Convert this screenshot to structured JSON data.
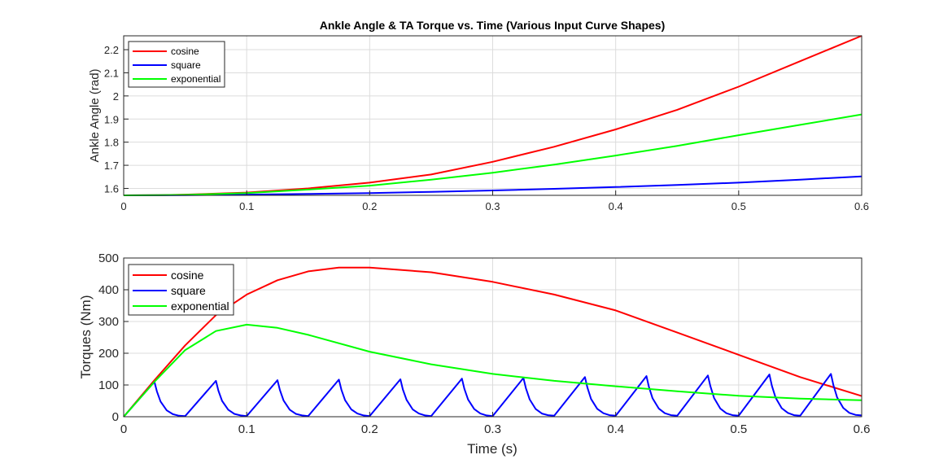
{
  "chart_data": [
    {
      "type": "line",
      "title": "Ankle Angle & TA Torque vs. Time (Various Input Curve Shapes)",
      "xlabel": "",
      "ylabel": "Ankle Angle (rad)",
      "xlim": [
        0,
        0.6
      ],
      "ylim": [
        1.57,
        2.26
      ],
      "xticks": [
        0,
        0.1,
        0.2,
        0.3,
        0.4,
        0.5,
        0.6
      ],
      "xtick_labels": [
        "0",
        "0.1",
        "0.2",
        "0.3",
        "0.4",
        "0.5",
        "0.6"
      ],
      "yticks": [
        1.6,
        1.7,
        1.8,
        1.9,
        2.0,
        2.1,
        2.2
      ],
      "ytick_labels": [
        "1.6",
        "1.7",
        "1.8",
        "1.9",
        "2",
        "2.1",
        "2.2"
      ],
      "grid": true,
      "legend": "top-left",
      "series": [
        {
          "name": "cosine",
          "color": "#ff0000",
          "x": [
            0,
            0.03,
            0.05,
            0.1,
            0.15,
            0.2,
            0.25,
            0.3,
            0.35,
            0.4,
            0.45,
            0.5,
            0.55,
            0.6
          ],
          "y": [
            1.57,
            1.571,
            1.573,
            1.582,
            1.6,
            1.625,
            1.66,
            1.715,
            1.78,
            1.855,
            1.94,
            2.04,
            2.15,
            2.26
          ]
        },
        {
          "name": "square",
          "color": "#0000ff",
          "x": [
            0,
            0.05,
            0.1,
            0.15,
            0.2,
            0.25,
            0.3,
            0.35,
            0.4,
            0.45,
            0.5,
            0.55,
            0.6
          ],
          "y": [
            1.57,
            1.571,
            1.573,
            1.576,
            1.58,
            1.585,
            1.591,
            1.598,
            1.606,
            1.615,
            1.625,
            1.638,
            1.652
          ]
        },
        {
          "name": "exponential",
          "color": "#00ff00",
          "x": [
            0,
            0.03,
            0.05,
            0.1,
            0.15,
            0.2,
            0.25,
            0.3,
            0.35,
            0.4,
            0.45,
            0.5,
            0.55,
            0.6
          ],
          "y": [
            1.57,
            1.571,
            1.572,
            1.58,
            1.595,
            1.612,
            1.638,
            1.668,
            1.703,
            1.742,
            1.784,
            1.83,
            1.875,
            1.92
          ]
        }
      ]
    },
    {
      "type": "line",
      "title": "",
      "xlabel": "Time (s)",
      "ylabel": "Torques (Nm)",
      "xlim": [
        0,
        0.6
      ],
      "ylim": [
        0,
        500
      ],
      "xticks": [
        0,
        0.1,
        0.2,
        0.3,
        0.4,
        0.5,
        0.6
      ],
      "xtick_labels": [
        "0",
        "0.1",
        "0.2",
        "0.3",
        "0.4",
        "0.5",
        "0.6"
      ],
      "yticks": [
        0,
        100,
        200,
        300,
        400,
        500
      ],
      "ytick_labels": [
        "0",
        "100",
        "200",
        "300",
        "400",
        "500"
      ],
      "grid": true,
      "legend": "top-left",
      "series": [
        {
          "name": "cosine",
          "color": "#ff0000",
          "x": [
            0,
            0.025,
            0.05,
            0.075,
            0.1,
            0.125,
            0.15,
            0.175,
            0.2,
            0.25,
            0.3,
            0.35,
            0.4,
            0.45,
            0.5,
            0.55,
            0.6
          ],
          "y": [
            0,
            115,
            225,
            320,
            385,
            430,
            458,
            470,
            470,
            455,
            425,
            385,
            335,
            265,
            195,
            125,
            65
          ]
        },
        {
          "name": "square",
          "color": "#0000ff",
          "x": [
            0,
            0.025,
            0.027,
            0.03,
            0.035,
            0.04,
            0.045,
            0.05,
            0.075,
            0.077,
            0.08,
            0.085,
            0.09,
            0.095,
            0.1,
            0.125,
            0.127,
            0.13,
            0.135,
            0.14,
            0.145,
            0.15,
            0.175,
            0.177,
            0.18,
            0.185,
            0.19,
            0.195,
            0.2,
            0.225,
            0.227,
            0.23,
            0.235,
            0.24,
            0.245,
            0.25,
            0.275,
            0.277,
            0.28,
            0.285,
            0.29,
            0.295,
            0.3,
            0.325,
            0.327,
            0.33,
            0.335,
            0.34,
            0.345,
            0.35,
            0.375,
            0.377,
            0.38,
            0.385,
            0.39,
            0.395,
            0.4,
            0.425,
            0.427,
            0.43,
            0.435,
            0.44,
            0.445,
            0.45,
            0.475,
            0.477,
            0.48,
            0.485,
            0.49,
            0.495,
            0.5,
            0.525,
            0.527,
            0.53,
            0.535,
            0.54,
            0.545,
            0.55,
            0.575,
            0.577,
            0.58,
            0.585,
            0.59,
            0.595,
            0.6
          ],
          "y": [
            0,
            110,
            80,
            48,
            20,
            8,
            3,
            2,
            113,
            82,
            50,
            22,
            9,
            4,
            2,
            115,
            84,
            51,
            22,
            9,
            4,
            2,
            117,
            85,
            52,
            23,
            10,
            4,
            2,
            118,
            86,
            53,
            23,
            10,
            4,
            2,
            120,
            88,
            54,
            24,
            10,
            4,
            2,
            122,
            90,
            55,
            24,
            10,
            5,
            3,
            125,
            92,
            56,
            25,
            11,
            5,
            3,
            128,
            94,
            58,
            26,
            11,
            5,
            3,
            130,
            96,
            59,
            26,
            11,
            5,
            3,
            133,
            98,
            60,
            27,
            12,
            5,
            3,
            135,
            100,
            61,
            28,
            12,
            6,
            4
          ]
        },
        {
          "name": "exponential",
          "color": "#00ff00",
          "x": [
            0,
            0.025,
            0.05,
            0.075,
            0.1,
            0.125,
            0.15,
            0.2,
            0.25,
            0.3,
            0.35,
            0.4,
            0.45,
            0.5,
            0.55,
            0.6
          ],
          "y": [
            0,
            110,
            210,
            270,
            290,
            280,
            258,
            205,
            165,
            135,
            113,
            96,
            80,
            66,
            57,
            52
          ]
        }
      ]
    }
  ]
}
